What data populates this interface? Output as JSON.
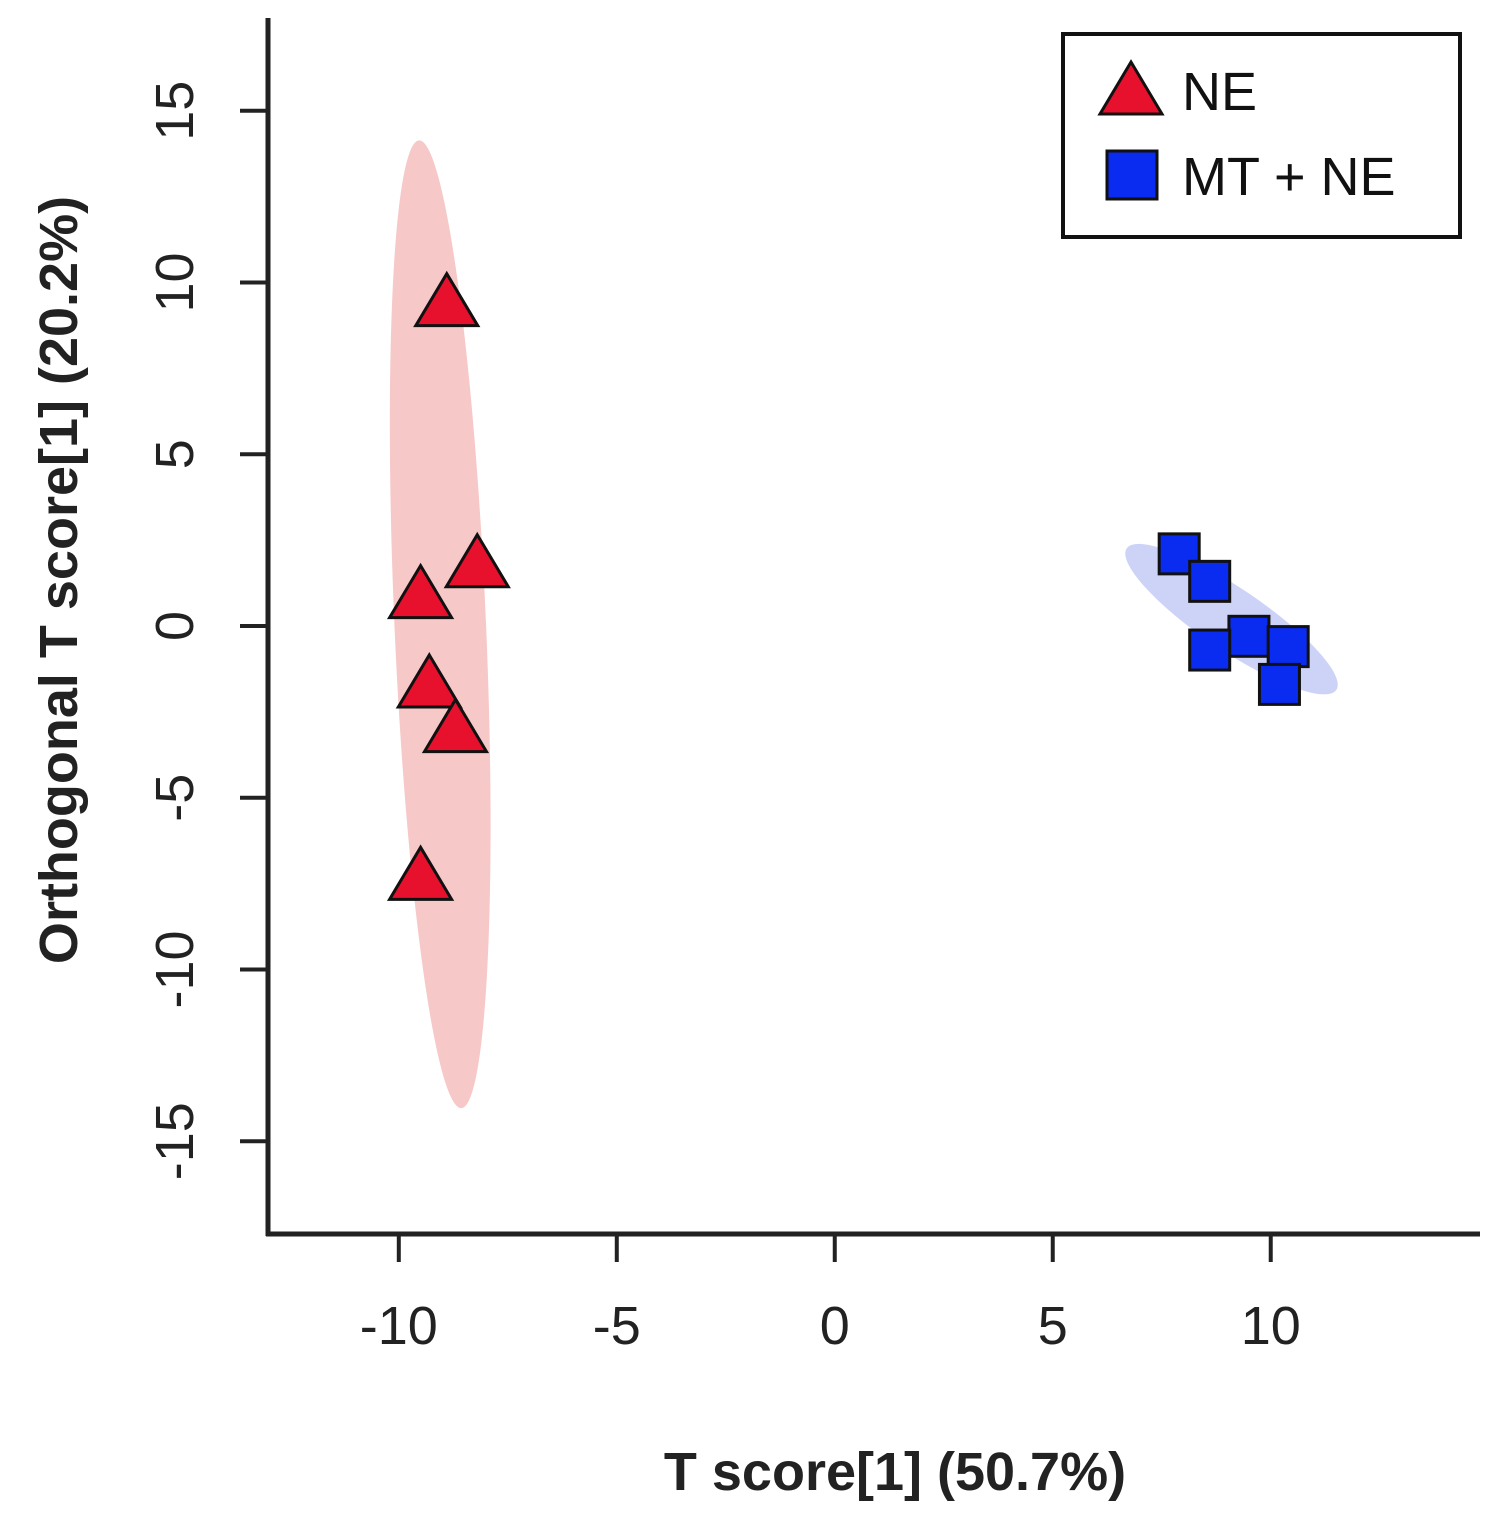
{
  "chart_data": {
    "type": "scatter",
    "xlabel": "T score[1] (50.7%)",
    "ylabel": "Orthogonal T score[1] (20.2%)",
    "xlim": [
      -13,
      14.8
    ],
    "ylim": [
      -17.7,
      17.7
    ],
    "xticks": [
      -10,
      -5,
      0,
      5,
      10
    ],
    "yticks": [
      -15,
      -10,
      -5,
      0,
      5,
      10,
      15
    ],
    "xtick_labels": [
      "-10",
      "-5",
      "0",
      "5",
      "10"
    ],
    "ytick_labels": [
      "-15",
      "-10",
      "-5",
      "0",
      "5",
      "10",
      "15"
    ],
    "grid": false,
    "legend_position": "top-right",
    "series": [
      {
        "name": "NE",
        "marker": "triangle",
        "color": "#e8112d",
        "ellipse_color": "#f7c8c8",
        "points": [
          {
            "x": -8.9,
            "y": 9.5
          },
          {
            "x": -8.2,
            "y": 1.9
          },
          {
            "x": -9.5,
            "y": 1.0
          },
          {
            "x": -9.3,
            "y": -1.6
          },
          {
            "x": -8.7,
            "y": -2.9
          },
          {
            "x": -9.5,
            "y": -7.2
          }
        ],
        "ellipse": {
          "cx": -9.05,
          "cy": 0.05,
          "rx": 1.05,
          "ry": 14.1,
          "angle": -2.5
        }
      },
      {
        "name": "MT + NE",
        "marker": "square",
        "color": "#0a2bf0",
        "ellipse_color": "#cdd3f7",
        "points": [
          {
            "x": 7.9,
            "y": 2.1
          },
          {
            "x": 8.6,
            "y": 1.3
          },
          {
            "x": 9.5,
            "y": -0.3
          },
          {
            "x": 10.4,
            "y": -0.6
          },
          {
            "x": 8.6,
            "y": -0.7
          },
          {
            "x": 10.2,
            "y": -1.7
          }
        ],
        "ellipse": {
          "cx": 9.1,
          "cy": 0.2,
          "rx": 2.9,
          "ry": 0.95,
          "angle": 34
        }
      }
    ]
  }
}
